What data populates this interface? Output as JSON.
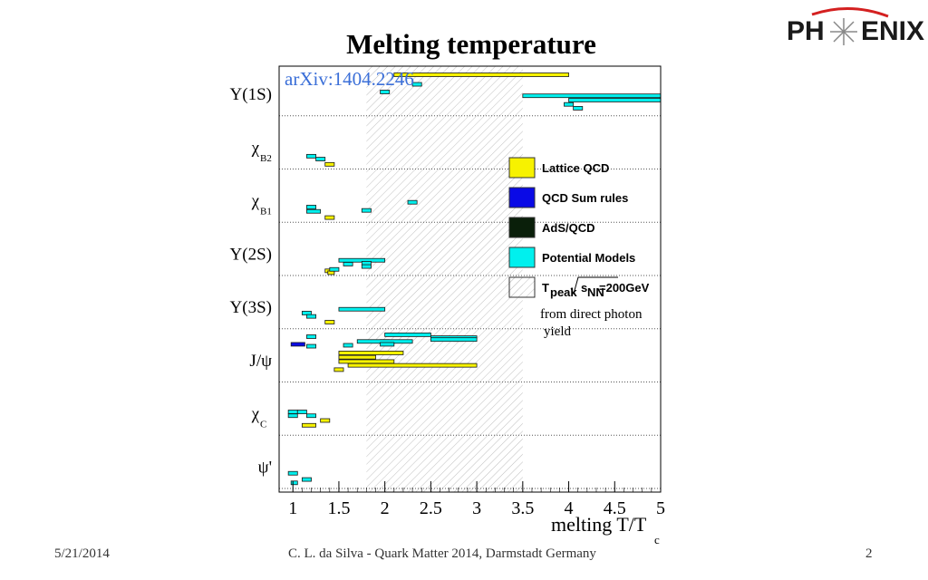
{
  "slide": {
    "title": "Melting temperature",
    "footer_date": "5/21/2014",
    "footer_center": "C. L. da Silva - Quark Matter 2014, Darmstadt Germany",
    "page_number": "2",
    "logo_text_left": "PH",
    "logo_text_right": "ENIX"
  },
  "chart_data": {
    "type": "bar",
    "orientation": "horizontal-ranges",
    "reference": "arXiv:1404.2246",
    "xlabel_main": "melting T/T",
    "xlabel_sub": "c",
    "xlim": [
      0.85,
      5.0
    ],
    "xticks": [
      1,
      1.5,
      2,
      2.5,
      3,
      3.5,
      4,
      4.5,
      5
    ],
    "xtick_labels": [
      "1",
      "1.5",
      "2",
      "2.5",
      "3",
      "3.5",
      "4",
      "4.5",
      "5"
    ],
    "grid": "dotted horizontal separators",
    "legend_position": "right",
    "categories": [
      {
        "main": "Υ(1S)",
        "sub": ""
      },
      {
        "main": "χ",
        "sub": "B2"
      },
      {
        "main": "χ",
        "sub": "B1"
      },
      {
        "main": "Υ(2S)",
        "sub": ""
      },
      {
        "main": "Υ(3S)",
        "sub": ""
      },
      {
        "main": "J/ψ",
        "sub": ""
      },
      {
        "main": "χ",
        "sub": "C"
      },
      {
        "main": "ψ'",
        "sub": ""
      }
    ],
    "band": {
      "from": 1.8,
      "to": 3.5
    },
    "legend": [
      {
        "label": "Lattice QCD",
        "color": "#f7f200"
      },
      {
        "label": "QCD Sum rules",
        "color": "#0a0ae6"
      },
      {
        "label": "AdS/QCD",
        "color": "#0a1f0a"
      },
      {
        "label": "Potential Models",
        "color": "#00f0ee"
      },
      {
        "label_main": "T",
        "label_sub1": "peak",
        "label_mid": "s",
        "label_sub2": "NN",
        "label_tail": "=200GeV",
        "color": "hatch"
      }
    ],
    "band_note_line1": "from direct photon",
    "band_note_line2": "yield",
    "series": [
      {
        "name": "Lattice QCD",
        "color": "#f7f200",
        "bars": [
          {
            "cat": 0,
            "frac": 0.18,
            "from": 2.1,
            "to": 4.0
          },
          {
            "cat": 1,
            "frac": 0.94,
            "from": 1.35,
            "to": 1.45
          },
          {
            "cat": 2,
            "frac": 0.94,
            "from": 1.35,
            "to": 1.45
          },
          {
            "cat": 3,
            "frac": 0.94,
            "from": 1.35,
            "to": 1.45
          },
          {
            "cat": 3,
            "frac": 0.98,
            "from": 1.38,
            "to": 1.45
          },
          {
            "cat": 4,
            "frac": 0.9,
            "from": 1.35,
            "to": 1.45
          },
          {
            "cat": 5,
            "frac": 0.43,
            "from": 1.5,
            "to": 2.2
          },
          {
            "cat": 5,
            "frac": 0.52,
            "from": 1.5,
            "to": 1.9
          },
          {
            "cat": 5,
            "frac": 0.61,
            "from": 1.5,
            "to": 2.1
          },
          {
            "cat": 5,
            "frac": 0.69,
            "from": 1.6,
            "to": 3.0
          },
          {
            "cat": 5,
            "frac": 0.78,
            "from": 1.45,
            "to": 1.55
          },
          {
            "cat": 6,
            "frac": 0.73,
            "from": 1.3,
            "to": 1.4
          },
          {
            "cat": 6,
            "frac": 0.83,
            "from": 1.1,
            "to": 1.25
          }
        ]
      },
      {
        "name": "QCD Sum rules",
        "color": "#0a0ae6",
        "bars": [
          {
            "cat": 5,
            "frac": 0.25,
            "from": 0.98,
            "to": 1.13
          }
        ]
      },
      {
        "name": "AdS/QCD",
        "color": "#0a1f0a",
        "bars": [
          {
            "cat": 5,
            "frac": 0.19,
            "from": 1.95,
            "to": 2.05
          },
          {
            "cat": 5,
            "frac": 0.15,
            "from": 2.75,
            "to": 2.85
          }
        ]
      },
      {
        "name": "Potential Models",
        "color": "#00f0ee",
        "bars": [
          {
            "cat": 0,
            "frac": 0.38,
            "from": 2.3,
            "to": 2.4
          },
          {
            "cat": 0,
            "frac": 0.54,
            "from": 1.95,
            "to": 2.05
          },
          {
            "cat": 0,
            "frac": 0.62,
            "from": 3.5,
            "to": 5.0
          },
          {
            "cat": 0,
            "frac": 0.71,
            "from": 4.0,
            "to": 5.0
          },
          {
            "cat": 0,
            "frac": 0.8,
            "from": 3.95,
            "to": 4.05
          },
          {
            "cat": 0,
            "frac": 0.88,
            "from": 4.05,
            "to": 4.15
          },
          {
            "cat": 1,
            "frac": 0.77,
            "from": 1.15,
            "to": 1.25
          },
          {
            "cat": 1,
            "frac": 0.83,
            "from": 1.25,
            "to": 1.35
          },
          {
            "cat": 2,
            "frac": 0.62,
            "from": 2.25,
            "to": 2.35
          },
          {
            "cat": 2,
            "frac": 0.72,
            "from": 1.15,
            "to": 1.25
          },
          {
            "cat": 2,
            "frac": 0.81,
            "from": 1.15,
            "to": 1.3
          },
          {
            "cat": 2,
            "frac": 0.79,
            "from": 1.75,
            "to": 1.85
          },
          {
            "cat": 3,
            "frac": 0.72,
            "from": 1.5,
            "to": 2.0
          },
          {
            "cat": 3,
            "frac": 0.8,
            "from": 1.55,
            "to": 1.65
          },
          {
            "cat": 3,
            "frac": 0.78,
            "from": 1.75,
            "to": 1.85
          },
          {
            "cat": 3,
            "frac": 0.85,
            "from": 1.75,
            "to": 1.85
          },
          {
            "cat": 3,
            "frac": 0.91,
            "from": 1.4,
            "to": 1.5
          },
          {
            "cat": 4,
            "frac": 0.63,
            "from": 1.5,
            "to": 2.0
          },
          {
            "cat": 4,
            "frac": 0.71,
            "from": 1.1,
            "to": 1.2
          },
          {
            "cat": 4,
            "frac": 0.78,
            "from": 1.15,
            "to": 1.25
          },
          {
            "cat": 5,
            "frac": 0.05,
            "from": 2.0,
            "to": 2.5
          },
          {
            "cat": 5,
            "frac": 0.09,
            "from": 1.15,
            "to": 1.25
          },
          {
            "cat": 5,
            "frac": 0.11,
            "from": 2.5,
            "to": 3.0
          },
          {
            "cat": 5,
            "frac": 0.15,
            "from": 2.5,
            "to": 3.0
          },
          {
            "cat": 5,
            "frac": 0.19,
            "from": 1.7,
            "to": 2.3
          },
          {
            "cat": 5,
            "frac": 0.25,
            "from": 1.95,
            "to": 2.1
          },
          {
            "cat": 5,
            "frac": 0.27,
            "from": 1.55,
            "to": 1.65
          },
          {
            "cat": 5,
            "frac": 0.29,
            "from": 1.15,
            "to": 1.25
          },
          {
            "cat": 6,
            "frac": 0.55,
            "from": 0.95,
            "to": 1.05
          },
          {
            "cat": 6,
            "frac": 0.63,
            "from": 0.95,
            "to": 1.05
          },
          {
            "cat": 6,
            "frac": 0.55,
            "from": 1.05,
            "to": 1.15
          },
          {
            "cat": 6,
            "frac": 0.63,
            "from": 1.15,
            "to": 1.25
          },
          {
            "cat": 7,
            "frac": 0.72,
            "from": 0.95,
            "to": 1.05
          },
          {
            "cat": 7,
            "frac": 0.85,
            "from": 1.1,
            "to": 1.2
          },
          {
            "cat": 7,
            "frac": 0.92,
            "from": 0.98,
            "to": 1.05
          }
        ]
      }
    ]
  }
}
